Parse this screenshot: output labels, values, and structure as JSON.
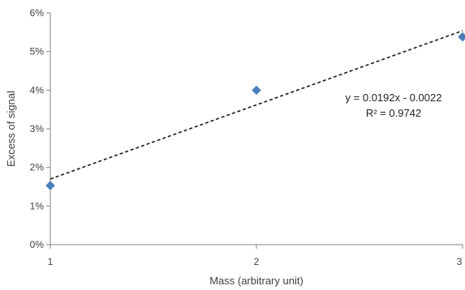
{
  "chart_data": {
    "type": "scatter",
    "xlabel": "Mass (arbitrary unit)",
    "ylabel": "Excess of signal",
    "xlim": [
      1,
      3
    ],
    "ylim": [
      0,
      0.06
    ],
    "x_ticks": [
      "1",
      "2",
      "3"
    ],
    "y_ticks": [
      "0%",
      "1%",
      "2%",
      "3%",
      "4%",
      "5%",
      "6%"
    ],
    "grid": false,
    "series": [
      {
        "x": [
          1,
          2,
          3
        ],
        "y": [
          0.0153,
          0.04,
          0.0538
        ],
        "color": "#4a7ebb",
        "marker": "diamond"
      }
    ],
    "trendline": {
      "slope": 0.0192,
      "intercept": -0.0022,
      "style": "dashed",
      "equation_label": "y = 0.0192x - 0.0022",
      "r2_label": "R² = 0.9742"
    }
  }
}
